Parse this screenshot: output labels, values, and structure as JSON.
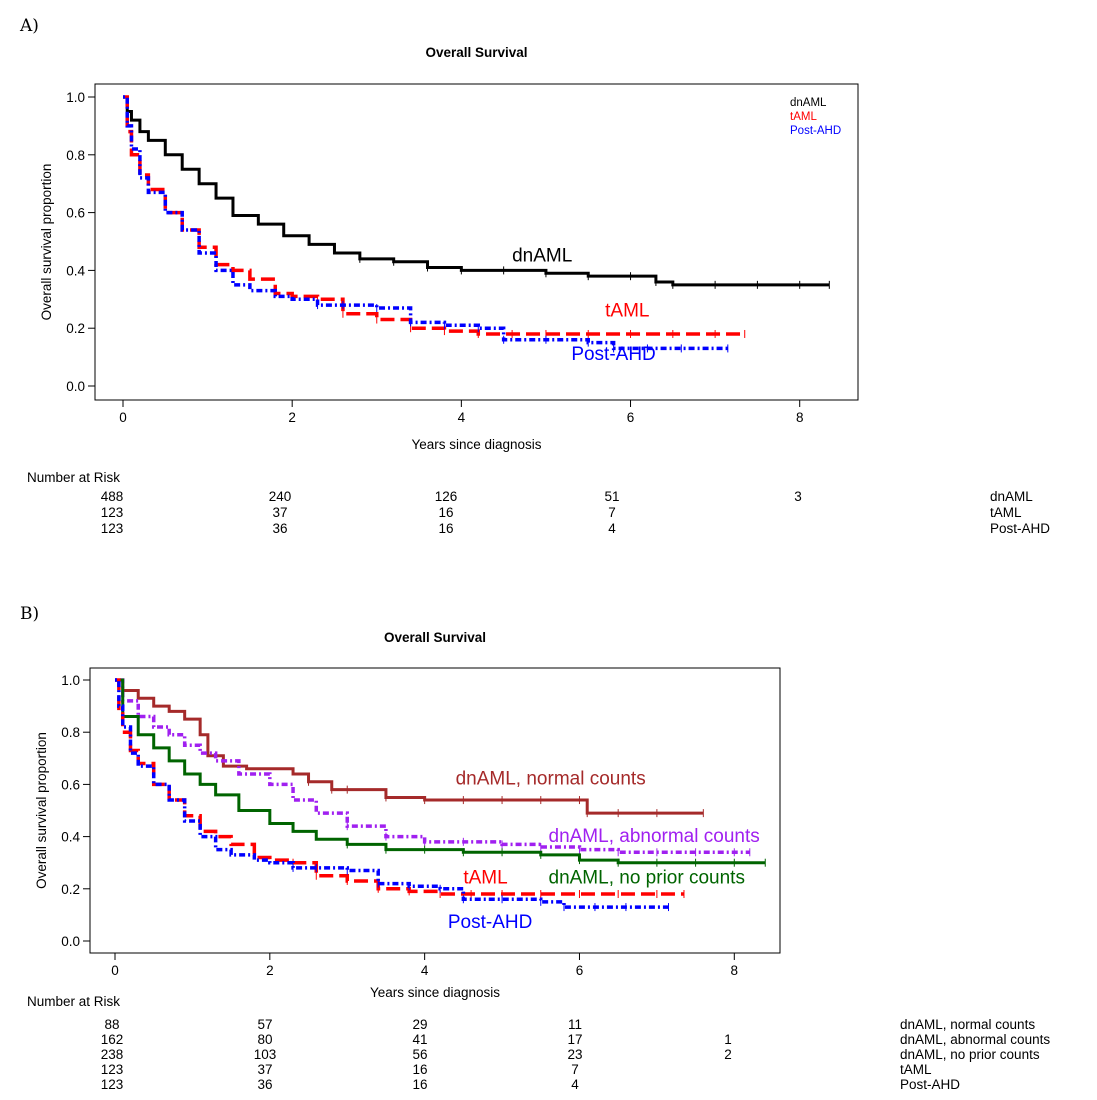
{
  "panels": [
    {
      "label": "A)",
      "chart_data": {
        "type": "line",
        "title": "Overall Survival",
        "xlabel": "Years since diagnosis",
        "ylabel": "Overall survival proportion",
        "xlim": [
          0,
          8.5
        ],
        "ylim": [
          0,
          1.0
        ],
        "xticks": [
          0,
          2,
          4,
          6,
          8
        ],
        "yticks": [
          "0.0",
          "0.2",
          "0.4",
          "0.6",
          "0.8",
          "1.0"
        ],
        "legend": {
          "position": "top-right",
          "entries": [
            {
              "name": "dnAML",
              "color": "#000000"
            },
            {
              "name": "tAML",
              "color": "#ff0000"
            },
            {
              "name": "Post-AHD",
              "color": "#0000ff"
            }
          ]
        },
        "series": [
          {
            "name": "dnAML",
            "color": "#000000",
            "style": "solid",
            "label": "dnAML",
            "label_at": [
              4.6,
              0.43
            ],
            "x": [
              0,
              0.05,
              0.1,
              0.2,
              0.3,
              0.5,
              0.7,
              0.9,
              1.1,
              1.3,
              1.6,
              1.9,
              2.2,
              2.5,
              2.8,
              3.2,
              3.6,
              4.0,
              4.5,
              5.0,
              5.5,
              6.0,
              6.3,
              6.5,
              7.0,
              7.5,
              8.0,
              8.35
            ],
            "y": [
              1.0,
              0.95,
              0.92,
              0.88,
              0.85,
              0.8,
              0.75,
              0.7,
              0.65,
              0.59,
              0.56,
              0.52,
              0.49,
              0.46,
              0.44,
              0.43,
              0.41,
              0.4,
              0.4,
              0.39,
              0.38,
              0.38,
              0.36,
              0.35,
              0.35,
              0.35,
              0.35,
              0.35
            ]
          },
          {
            "name": "tAML",
            "color": "#ff0000",
            "style": "dashed",
            "label": "tAML",
            "label_at": [
              5.7,
              0.24
            ],
            "x": [
              0,
              0.05,
              0.1,
              0.2,
              0.3,
              0.5,
              0.7,
              0.9,
              1.1,
              1.3,
              1.5,
              1.8,
              2.0,
              2.3,
              2.6,
              3.0,
              3.4,
              3.8,
              4.2,
              4.6,
              5.0,
              5.5,
              6.0,
              6.5,
              7.0,
              7.35
            ],
            "y": [
              1.0,
              0.88,
              0.8,
              0.73,
              0.68,
              0.6,
              0.54,
              0.48,
              0.42,
              0.4,
              0.37,
              0.32,
              0.31,
              0.3,
              0.25,
              0.23,
              0.2,
              0.19,
              0.18,
              0.18,
              0.18,
              0.18,
              0.18,
              0.18,
              0.18,
              0.18
            ]
          },
          {
            "name": "Post-AHD",
            "color": "#0000ff",
            "style": "dotdash",
            "label": "Post-AHD",
            "label_at": [
              5.3,
              0.09
            ],
            "x": [
              0,
              0.05,
              0.1,
              0.2,
              0.3,
              0.5,
              0.7,
              0.9,
              1.1,
              1.3,
              1.5,
              1.8,
              2.0,
              2.3,
              2.6,
              3.0,
              3.4,
              3.8,
              4.2,
              4.5,
              5.0,
              5.5,
              5.8,
              6.2,
              6.6,
              7.15
            ],
            "y": [
              1.0,
              0.9,
              0.82,
              0.72,
              0.67,
              0.6,
              0.54,
              0.46,
              0.4,
              0.35,
              0.33,
              0.31,
              0.3,
              0.28,
              0.28,
              0.27,
              0.22,
              0.21,
              0.2,
              0.16,
              0.16,
              0.15,
              0.13,
              0.13,
              0.13,
              0.13
            ]
          }
        ]
      },
      "risk_table": {
        "title": "Number at Risk",
        "columns": [
          0,
          2,
          4,
          6,
          8
        ],
        "rows": [
          {
            "name": "dnAML",
            "values": [
              "488",
              "240",
              "126",
              "51",
              "3"
            ]
          },
          {
            "name": "tAML",
            "values": [
              "123",
              "37",
              "16",
              "7",
              ""
            ]
          },
          {
            "name": "Post-AHD",
            "values": [
              "123",
              "36",
              "16",
              "4",
              ""
            ]
          }
        ]
      }
    },
    {
      "label": "B)",
      "chart_data": {
        "type": "line",
        "title": "Overall Survival",
        "xlabel": "Years since diagnosis",
        "ylabel": "Overall survival proportion",
        "xlim": [
          0,
          8.5
        ],
        "ylim": [
          0,
          1.0
        ],
        "xticks": [
          0,
          2,
          4,
          6,
          8
        ],
        "yticks": [
          "0.0",
          "0.2",
          "0.4",
          "0.6",
          "0.8",
          "1.0"
        ],
        "series": [
          {
            "name": "dnAML, normal counts",
            "color": "#a52a2a",
            "style": "solid",
            "label": "dnAML, normal counts",
            "label_at": [
              4.4,
              0.6
            ],
            "x": [
              0,
              0.1,
              0.3,
              0.5,
              0.7,
              0.9,
              1.1,
              1.2,
              1.4,
              1.7,
              2.0,
              2.3,
              2.5,
              2.8,
              3.0,
              3.5,
              4.0,
              4.5,
              5.0,
              5.5,
              6.0,
              6.1,
              6.5,
              7.0,
              7.6
            ],
            "y": [
              1.0,
              0.96,
              0.93,
              0.9,
              0.88,
              0.85,
              0.79,
              0.71,
              0.67,
              0.66,
              0.66,
              0.64,
              0.61,
              0.58,
              0.58,
              0.55,
              0.54,
              0.54,
              0.54,
              0.54,
              0.54,
              0.49,
              0.49,
              0.49,
              0.49
            ]
          },
          {
            "name": "dnAML, abnormal counts",
            "color": "#a020f0",
            "style": "dotdash",
            "label": "dnAML, abnormal counts",
            "label_at": [
              5.6,
              0.38
            ],
            "x": [
              0,
              0.1,
              0.3,
              0.5,
              0.7,
              0.9,
              1.1,
              1.3,
              1.6,
              2.0,
              2.3,
              2.6,
              3.0,
              3.5,
              4.0,
              4.5,
              5.0,
              5.5,
              6.0,
              6.5,
              7.0,
              7.5,
              8.0,
              8.2
            ],
            "y": [
              1.0,
              0.92,
              0.86,
              0.82,
              0.79,
              0.75,
              0.72,
              0.69,
              0.64,
              0.6,
              0.54,
              0.49,
              0.44,
              0.4,
              0.38,
              0.38,
              0.37,
              0.36,
              0.35,
              0.34,
              0.34,
              0.34,
              0.34,
              0.34
            ]
          },
          {
            "name": "dnAML, no prior counts",
            "color": "#006400",
            "style": "solid",
            "label": "dnAML, no prior counts",
            "label_at": [
              5.6,
              0.22
            ],
            "x": [
              0,
              0.1,
              0.3,
              0.5,
              0.7,
              0.9,
              1.1,
              1.3,
              1.6,
              2.0,
              2.3,
              2.6,
              3.0,
              3.5,
              4.0,
              4.5,
              5.0,
              5.5,
              6.0,
              6.5,
              7.0,
              7.5,
              8.0,
              8.4
            ],
            "y": [
              1.0,
              0.86,
              0.79,
              0.74,
              0.69,
              0.64,
              0.6,
              0.56,
              0.5,
              0.45,
              0.42,
              0.39,
              0.37,
              0.35,
              0.35,
              0.34,
              0.34,
              0.33,
              0.31,
              0.3,
              0.3,
              0.3,
              0.3,
              0.3
            ]
          },
          {
            "name": "tAML",
            "color": "#ff0000",
            "style": "dashed",
            "label": "tAML",
            "label_at": [
              4.5,
              0.22
            ],
            "x": [
              0,
              0.05,
              0.1,
              0.2,
              0.3,
              0.5,
              0.7,
              0.9,
              1.1,
              1.3,
              1.5,
              1.8,
              2.0,
              2.3,
              2.6,
              3.0,
              3.4,
              3.8,
              4.2,
              4.6,
              5.0,
              5.5,
              6.0,
              6.5,
              7.0,
              7.35
            ],
            "y": [
              1.0,
              0.88,
              0.8,
              0.73,
              0.68,
              0.6,
              0.54,
              0.48,
              0.42,
              0.4,
              0.37,
              0.32,
              0.31,
              0.3,
              0.25,
              0.23,
              0.2,
              0.19,
              0.18,
              0.18,
              0.18,
              0.18,
              0.18,
              0.18,
              0.18,
              0.18
            ]
          },
          {
            "name": "Post-AHD",
            "color": "#0000ff",
            "style": "dotdash",
            "label": "Post-AHD",
            "label_at": [
              4.3,
              0.05
            ],
            "x": [
              0,
              0.05,
              0.1,
              0.2,
              0.3,
              0.5,
              0.7,
              0.9,
              1.1,
              1.3,
              1.5,
              1.8,
              2.0,
              2.3,
              2.6,
              3.0,
              3.4,
              3.8,
              4.2,
              4.5,
              5.0,
              5.5,
              5.8,
              6.2,
              6.6,
              7.15
            ],
            "y": [
              1.0,
              0.9,
              0.82,
              0.72,
              0.67,
              0.6,
              0.54,
              0.46,
              0.4,
              0.35,
              0.33,
              0.31,
              0.3,
              0.28,
              0.28,
              0.27,
              0.22,
              0.21,
              0.2,
              0.16,
              0.16,
              0.15,
              0.13,
              0.13,
              0.13,
              0.13
            ]
          }
        ]
      },
      "risk_table": {
        "title": "Number at Risk",
        "columns": [
          0,
          2,
          4,
          6,
          8
        ],
        "rows": [
          {
            "name": "dnAML, normal counts",
            "values": [
              "88",
              "57",
              "29",
              "11",
              ""
            ]
          },
          {
            "name": "dnAML, abnormal counts",
            "values": [
              "162",
              "80",
              "41",
              "17",
              "1"
            ]
          },
          {
            "name": "dnAML, no prior counts",
            "values": [
              "238",
              "103",
              "56",
              "23",
              "2"
            ]
          },
          {
            "name": "tAML",
            "values": [
              "123",
              "37",
              "16",
              "7",
              ""
            ]
          },
          {
            "name": "Post-AHD",
            "values": [
              "123",
              "36",
              "16",
              "4",
              ""
            ]
          }
        ]
      }
    }
  ]
}
